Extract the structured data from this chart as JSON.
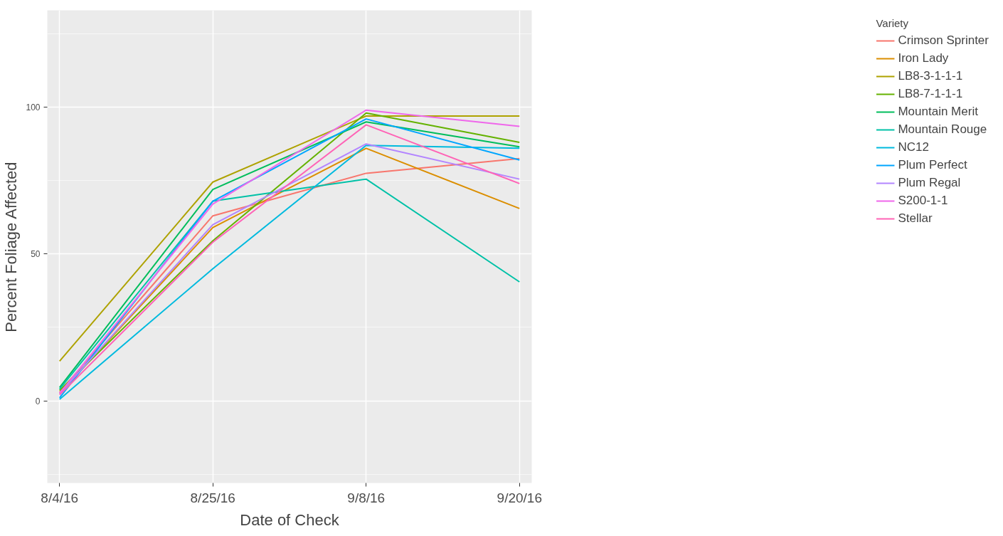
{
  "chart_data": {
    "type": "line",
    "xlabel": "Date of Check",
    "ylabel": "Percent Foliage Affected",
    "legend_title": "Variety",
    "categories": [
      "8/4/16",
      "8/25/16",
      "9/8/16",
      "9/20/16"
    ],
    "ylim": [
      -28,
      133
    ],
    "yticks": [
      0,
      50,
      100
    ],
    "grid": true,
    "legend": "right",
    "line_style": "solid",
    "series": [
      {
        "name": "Crimson Sprinter",
        "color": "#F8766D",
        "values": [
          3,
          63,
          77.5,
          82.5
        ]
      },
      {
        "name": "Iron Lady",
        "color": "#DB8E00",
        "values": [
          2.5,
          59,
          86,
          65.5
        ]
      },
      {
        "name": "LB8-3-1-1-1",
        "color": "#AEA200",
        "values": [
          13.5,
          74.5,
          97,
          97
        ]
      },
      {
        "name": "LB8-7-1-1-1",
        "color": "#64B200",
        "values": [
          3.5,
          54.5,
          98,
          88
        ]
      },
      {
        "name": "Mountain Merit",
        "color": "#00BD5C",
        "values": [
          4.5,
          72,
          95,
          86.5
        ]
      },
      {
        "name": "Mountain Rouge",
        "color": "#00C1A7",
        "values": [
          4,
          68,
          75.5,
          40.5
        ]
      },
      {
        "name": "NC12",
        "color": "#00BADE",
        "values": [
          0.5,
          45,
          87,
          86
        ]
      },
      {
        "name": "Plum Perfect",
        "color": "#00A6FF",
        "values": [
          1,
          68,
          96,
          82
        ]
      },
      {
        "name": "Plum Regal",
        "color": "#B385FF",
        "values": [
          2.5,
          60,
          87.5,
          75.5
        ]
      },
      {
        "name": "S200-1-1",
        "color": "#EF67EB",
        "values": [
          2.5,
          67,
          99,
          93.5
        ]
      },
      {
        "name": "Stellar",
        "color": "#FF63B6",
        "values": [
          2,
          54,
          94,
          74
        ]
      }
    ]
  }
}
